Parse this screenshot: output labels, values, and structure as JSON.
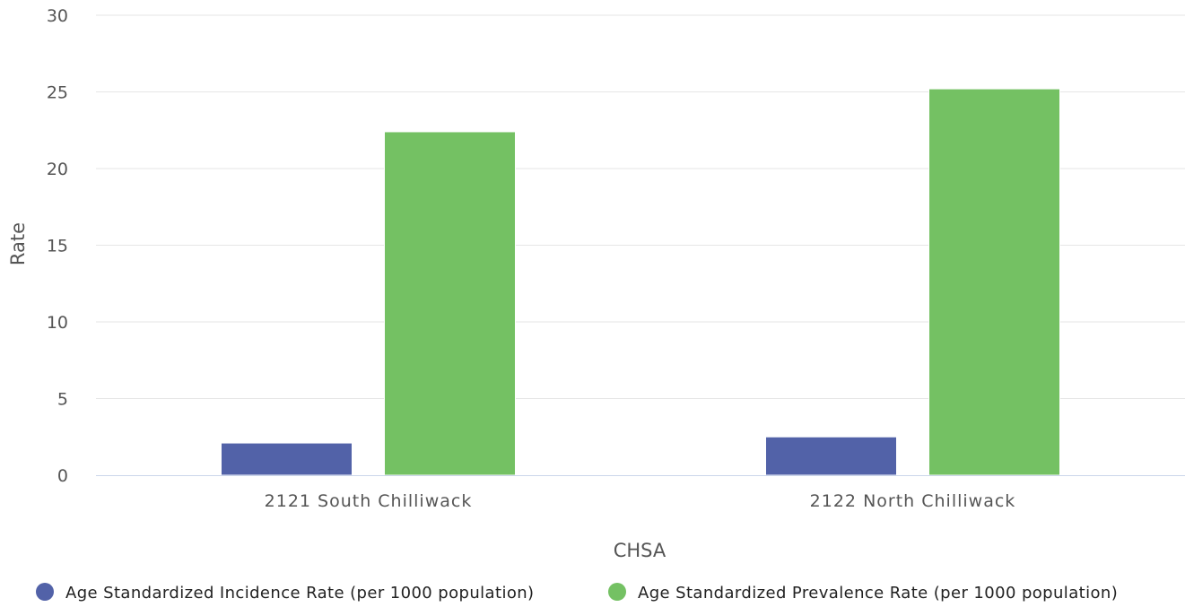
{
  "chart_data": {
    "type": "bar",
    "categories": [
      "2121 South Chilliwack",
      "2122 North Chilliwack"
    ],
    "series": [
      {
        "name": "Age Standardized Incidence Rate (per 1000 population)",
        "values": [
          2.1,
          2.5
        ],
        "color": "#5262a8"
      },
      {
        "name": "Age Standardized Prevalence Rate (per 1000 population)",
        "values": [
          22.4,
          25.2
        ],
        "color": "#74c163"
      }
    ],
    "xlabel": "CHSA",
    "ylabel": "Rate",
    "ylim": [
      0,
      30
    ],
    "yticks": [
      "0",
      "5",
      "10",
      "15",
      "20",
      "25",
      "30"
    ],
    "grid": true,
    "legend_position": "bottom"
  }
}
